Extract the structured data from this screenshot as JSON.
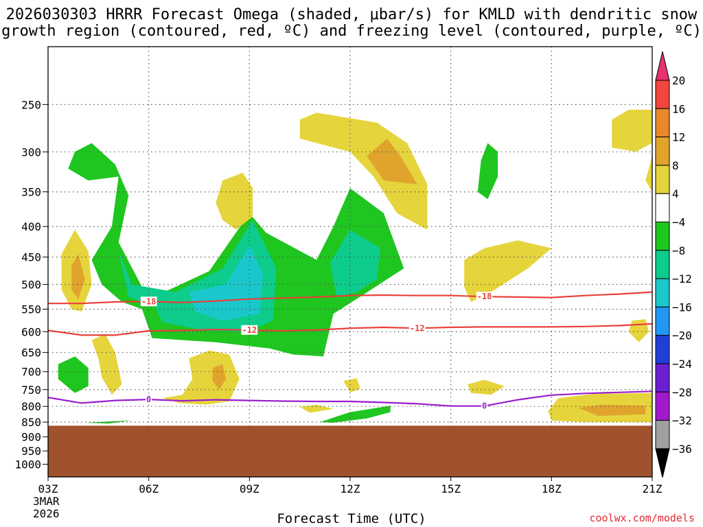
{
  "header": {
    "title_line1": "2026030303 HRRR Forecast Omega (shaded, μbar/s) for KMLD with dendritic snow",
    "title_line2": "growth region (contoured, red, ºC) and freezing level (contoured, purple, ºC)"
  },
  "footer": {
    "xlabel": "Forecast Time (UTC)",
    "credit": "coolwx.com/models",
    "date_line1": "3MAR",
    "date_line2": "2026"
  },
  "colors": {
    "accent_red": "#e8403a",
    "freezing_purple": "#9a1ccf",
    "terrain": "#a0522d"
  },
  "chart_data": {
    "type": "contour-time-height",
    "title": "2026030303 HRRR Forecast Omega (shaded, μbar/s) for KMLD with dendritic snow growth region (contoured, red, ºC) and freezing level (contoured, purple, ºC)",
    "xlabel": "Forecast Time (UTC)",
    "x_ticks": [
      "03Z",
      "06Z",
      "09Z",
      "12Z",
      "15Z",
      "18Z",
      "21Z"
    ],
    "x_hours": [
      3,
      6,
      9,
      12,
      15,
      18,
      21
    ],
    "xlim_hours": [
      3,
      21
    ],
    "y_ticks": [
      250,
      300,
      350,
      400,
      450,
      500,
      550,
      600,
      650,
      700,
      750,
      800,
      850,
      900,
      950,
      1000
    ],
    "ylim_hpa": [
      200,
      1050
    ],
    "y_scale": "log-pressure",
    "grid": true,
    "terrain_top_hpa": 862,
    "colorbar": {
      "levels": [
        20,
        16,
        12,
        8,
        4,
        -4,
        -8,
        -12,
        -16,
        -20,
        -24,
        -28,
        -32,
        -36
      ],
      "colors": [
        "#e8336d",
        "#f0463d",
        "#e8882d",
        "#e0a42d",
        "#e6d43c",
        "#ffffff",
        "#1fc61f",
        "#0dcc8c",
        "#1ac8cc",
        "#2196f3",
        "#1f3fd9",
        "#6a1fd0",
        "#a01acc",
        "#a0a0a0",
        "#000000"
      ]
    },
    "contour_lines": [
      {
        "name": "-18",
        "color": "#e8403a",
        "points": [
          [
            3,
            538
          ],
          [
            4,
            538
          ],
          [
            5,
            535
          ],
          [
            6,
            534
          ],
          [
            7,
            536
          ],
          [
            8,
            533
          ],
          [
            9,
            529
          ],
          [
            10,
            527
          ],
          [
            11,
            525
          ],
          [
            12,
            522
          ],
          [
            13,
            521
          ],
          [
            14,
            522
          ],
          [
            15,
            522
          ],
          [
            16,
            524
          ],
          [
            17,
            525
          ],
          [
            18,
            526
          ],
          [
            19,
            522
          ],
          [
            20,
            519
          ],
          [
            21,
            515
          ]
        ],
        "labels": [
          [
            6,
            534
          ],
          [
            16,
            524
          ]
        ]
      },
      {
        "name": "-12",
        "color": "#e8403a",
        "points": [
          [
            3,
            597
          ],
          [
            4,
            608
          ],
          [
            5,
            608
          ],
          [
            6,
            598
          ],
          [
            7,
            597
          ],
          [
            8,
            595
          ],
          [
            9,
            596
          ],
          [
            10,
            598
          ],
          [
            11,
            596
          ],
          [
            12,
            592
          ],
          [
            13,
            590
          ],
          [
            14,
            592
          ],
          [
            15,
            590
          ],
          [
            16,
            589
          ],
          [
            17,
            589
          ],
          [
            18,
            589
          ],
          [
            19,
            588
          ],
          [
            20,
            586
          ],
          [
            21,
            582
          ]
        ],
        "labels": [
          [
            9,
            596
          ],
          [
            14,
            592
          ]
        ]
      },
      {
        "name": "0",
        "color": "#9a1ccf",
        "points": [
          [
            3,
            773
          ],
          [
            4,
            790
          ],
          [
            5,
            782
          ],
          [
            6,
            779
          ],
          [
            7,
            783
          ],
          [
            8,
            780
          ],
          [
            9,
            782
          ],
          [
            10,
            784
          ],
          [
            11,
            785
          ],
          [
            12,
            785
          ],
          [
            13,
            788
          ],
          [
            14,
            792
          ],
          [
            15,
            799
          ],
          [
            16,
            799
          ],
          [
            17,
            780
          ],
          [
            18,
            766
          ],
          [
            19,
            761
          ],
          [
            20,
            758
          ],
          [
            21,
            755
          ]
        ],
        "labels": [
          [
            6,
            779
          ],
          [
            16,
            799
          ]
        ]
      }
    ],
    "shaded_regions": [
      {
        "value": -6,
        "points": [
          [
            3.8,
            300
          ],
          [
            4.3,
            290
          ],
          [
            5,
            315
          ],
          [
            5.4,
            355
          ],
          [
            5.1,
            425
          ],
          [
            5.8,
            505
          ],
          [
            6.3,
            520
          ],
          [
            7.8,
            475
          ],
          [
            9,
            380
          ],
          [
            9.5,
            410
          ],
          [
            11,
            455
          ],
          [
            11.5,
            400
          ],
          [
            12,
            345
          ],
          [
            13,
            380
          ],
          [
            13.6,
            470
          ],
          [
            12.4,
            520
          ],
          [
            11.5,
            560
          ],
          [
            11.2,
            660
          ],
          [
            10.3,
            655
          ],
          [
            9.6,
            640
          ],
          [
            8,
            625
          ],
          [
            6.1,
            615
          ],
          [
            5.8,
            550
          ],
          [
            5.2,
            535
          ],
          [
            4.6,
            500
          ],
          [
            4.3,
            455
          ],
          [
            4.9,
            400
          ],
          [
            5.1,
            330
          ],
          [
            4.2,
            335
          ],
          [
            3.6,
            320
          ]
        ]
      },
      {
        "value": -10,
        "points": [
          [
            5.1,
            440
          ],
          [
            5.5,
            500
          ],
          [
            6.8,
            515
          ],
          [
            8.2,
            470
          ],
          [
            9.1,
            390
          ],
          [
            9.8,
            470
          ],
          [
            9.7,
            575
          ],
          [
            8.9,
            600
          ],
          [
            7.6,
            597
          ],
          [
            6.4,
            578
          ],
          [
            6.2,
            545
          ],
          [
            5.4,
            525
          ]
        ]
      },
      {
        "value": -13,
        "points": [
          [
            7.2,
            515
          ],
          [
            8.3,
            500
          ],
          [
            9,
            430
          ],
          [
            9.4,
            480
          ],
          [
            9.3,
            560
          ],
          [
            8.2,
            575
          ],
          [
            7.4,
            555
          ]
        ]
      },
      {
        "value": -10,
        "points": [
          [
            12,
            405
          ],
          [
            12.9,
            435
          ],
          [
            12.8,
            490
          ],
          [
            12.2,
            515
          ],
          [
            11.6,
            525
          ],
          [
            11.4,
            460
          ]
        ]
      },
      {
        "value": -6,
        "points": [
          [
            16.1,
            290
          ],
          [
            16.4,
            300
          ],
          [
            16.4,
            330
          ],
          [
            16.1,
            360
          ],
          [
            15.8,
            350
          ],
          [
            15.9,
            310
          ]
        ]
      },
      {
        "value": -6,
        "points": [
          [
            3.3,
            680
          ],
          [
            3.8,
            660
          ],
          [
            4.2,
            690
          ],
          [
            4.2,
            740
          ],
          [
            3.8,
            760
          ],
          [
            3.3,
            720
          ]
        ]
      },
      {
        "value": -6,
        "points": [
          [
            4.1,
            852
          ],
          [
            4.8,
            848
          ],
          [
            5.5,
            845
          ],
          [
            4.8,
            855
          ]
        ]
      },
      {
        "value": -6,
        "points": [
          [
            11.1,
            850
          ],
          [
            12,
            818
          ],
          [
            13.2,
            798
          ],
          [
            13.2,
            818
          ],
          [
            12.5,
            838
          ],
          [
            11.5,
            852
          ]
        ]
      },
      {
        "value": 6,
        "points": [
          [
            10.5,
            265
          ],
          [
            11,
            258
          ],
          [
            12.8,
            268
          ],
          [
            13.7,
            290
          ],
          [
            14.3,
            340
          ],
          [
            14.3,
            405
          ],
          [
            13.4,
            380
          ],
          [
            12.7,
            330
          ],
          [
            12,
            300
          ],
          [
            11,
            290
          ],
          [
            10.5,
            285
          ]
        ]
      },
      {
        "value": 10,
        "points": [
          [
            12.5,
            305
          ],
          [
            13.1,
            285
          ],
          [
            13.5,
            305
          ],
          [
            14,
            340
          ],
          [
            13,
            335
          ]
        ]
      },
      {
        "value": 6,
        "points": [
          [
            8.2,
            335
          ],
          [
            8.8,
            325
          ],
          [
            9.1,
            345
          ],
          [
            9.1,
            385
          ],
          [
            8.6,
            405
          ],
          [
            8.2,
            390
          ],
          [
            8,
            365
          ]
        ]
      },
      {
        "value": 6,
        "points": [
          [
            3.4,
            445
          ],
          [
            3.8,
            405
          ],
          [
            4.2,
            440
          ],
          [
            4.3,
            500
          ],
          [
            4,
            555
          ],
          [
            3.7,
            550
          ],
          [
            3.4,
            510
          ]
        ]
      },
      {
        "value": 10,
        "points": [
          [
            3.7,
            465
          ],
          [
            3.9,
            445
          ],
          [
            4.1,
            490
          ],
          [
            3.9,
            530
          ],
          [
            3.7,
            510
          ]
        ]
      },
      {
        "value": 6,
        "points": [
          [
            4.3,
            620
          ],
          [
            4.7,
            605
          ],
          [
            5,
            650
          ],
          [
            5.2,
            735
          ],
          [
            4.9,
            765
          ],
          [
            4.6,
            715
          ],
          [
            4.5,
            665
          ]
        ]
      },
      {
        "value": 6,
        "points": [
          [
            7.2,
            665
          ],
          [
            7.8,
            645
          ],
          [
            8.4,
            655
          ],
          [
            8.7,
            720
          ],
          [
            8.4,
            785
          ],
          [
            7.7,
            795
          ],
          [
            6.9,
            790
          ],
          [
            6.4,
            775
          ],
          [
            7,
            765
          ],
          [
            7.3,
            720
          ]
        ]
      },
      {
        "value": 10,
        "points": [
          [
            7.9,
            690
          ],
          [
            8.2,
            680
          ],
          [
            8.3,
            720
          ],
          [
            8.1,
            750
          ],
          [
            7.9,
            725
          ]
        ]
      },
      {
        "value": 6,
        "points": [
          [
            15.4,
            455
          ],
          [
            16,
            435
          ],
          [
            17,
            422
          ],
          [
            18,
            435
          ],
          [
            17.3,
            470
          ],
          [
            16.2,
            515
          ],
          [
            15.6,
            535
          ],
          [
            15.4,
            505
          ]
        ]
      },
      {
        "value": 6,
        "points": [
          [
            19.8,
            265
          ],
          [
            20.3,
            255
          ],
          [
            21,
            255
          ],
          [
            21,
            290
          ],
          [
            20.5,
            300
          ],
          [
            19.8,
            295
          ]
        ]
      },
      {
        "value": 6,
        "points": [
          [
            18.2,
            775
          ],
          [
            19.3,
            762
          ],
          [
            21,
            760
          ],
          [
            21,
            850
          ],
          [
            19,
            850
          ],
          [
            18,
            845
          ],
          [
            17.9,
            815
          ]
        ]
      },
      {
        "value": 10,
        "points": [
          [
            18.8,
            805
          ],
          [
            19.5,
            795
          ],
          [
            20.8,
            798
          ],
          [
            20.8,
            825
          ],
          [
            19.4,
            830
          ]
        ]
      },
      {
        "value": 6,
        "points": [
          [
            15.5,
            735
          ],
          [
            16,
            722
          ],
          [
            16.6,
            740
          ],
          [
            16.2,
            765
          ],
          [
            15.6,
            760
          ]
        ]
      },
      {
        "value": 6,
        "points": [
          [
            11.8,
            725
          ],
          [
            12.2,
            718
          ],
          [
            12.3,
            748
          ],
          [
            12,
            758
          ]
        ]
      },
      {
        "value": 6,
        "points": [
          [
            10.5,
            802
          ],
          [
            11,
            795
          ],
          [
            11.5,
            808
          ],
          [
            10.8,
            820
          ]
        ]
      },
      {
        "value": 6,
        "points": [
          [
            20.4,
            575
          ],
          [
            20.8,
            572
          ],
          [
            20.9,
            600
          ],
          [
            20.6,
            625
          ],
          [
            20.3,
            600
          ]
        ]
      },
      {
        "value": 6,
        "points": [
          [
            20.9,
            320
          ],
          [
            21,
            305
          ],
          [
            21,
            350
          ],
          [
            20.8,
            335
          ]
        ]
      }
    ]
  }
}
